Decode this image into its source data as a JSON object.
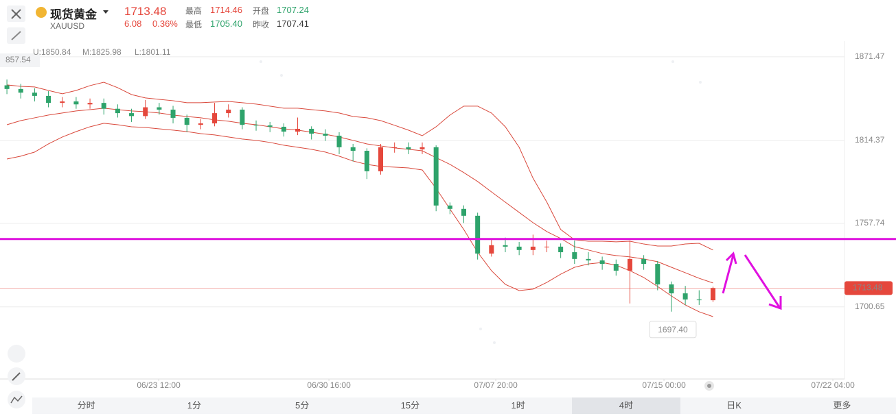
{
  "header": {
    "name": "现货黄金",
    "symbol": "XAUUSD",
    "price": "1713.48",
    "change": "6.08",
    "change_pct": "0.36%",
    "stats": [
      [
        "最高",
        "1714.46"
      ],
      [
        "开盘",
        "1707.24"
      ],
      [
        "最低",
        "1705.40"
      ],
      [
        "昨收",
        "1707.41"
      ]
    ]
  },
  "tabs": [
    "分时",
    "1分",
    "5分",
    "15分",
    "1时",
    "4时",
    "日K",
    "更多"
  ],
  "active_tab": 5,
  "chart_data": {
    "type": "candlestick",
    "indicator_labels": [
      "U:1850.84",
      "M:1825.98",
      "L:1801.11"
    ],
    "cursor_label": "857.54",
    "x": [
      0,
      1,
      2,
      3,
      4,
      5,
      6,
      7,
      8,
      9,
      10,
      11,
      12,
      13,
      14,
      15,
      16,
      17,
      18,
      19,
      20,
      21,
      22,
      23,
      24,
      25,
      26,
      27,
      28,
      29,
      30,
      31,
      32,
      33,
      34,
      35,
      36,
      37,
      38,
      39,
      40,
      41,
      42,
      43,
      44,
      45,
      46,
      47,
      48,
      49,
      50,
      51
    ],
    "open": [
      1852.0,
      1849.5,
      1847.0,
      1844.8,
      1840.0,
      1841.0,
      1839.0,
      1840.0,
      1836.0,
      1833.0,
      1831.0,
      1837.0,
      1835.4,
      1829.8,
      1825.0,
      1826.0,
      1833.0,
      1835.4,
      1825.0,
      1824.6,
      1823.7,
      1820.4,
      1822.3,
      1819.0,
      1817.6,
      1809.7,
      1807.3,
      1793.3,
      1809.7,
      1809.7,
      1808.3,
      1809.7,
      1769.9,
      1767.6,
      1762.9,
      1737.1,
      1742.8,
      1741.8,
      1739.5,
      1741.8,
      1741.8,
      1738.0,
      1733.4,
      1732.4,
      1730.0,
      1725.4,
      1733.4,
      1730.0,
      1716.0,
      1709.9,
      1705.7,
      1705.2
    ],
    "high": [
      1856,
      1853,
      1850,
      1848,
      1844,
      1844,
      1843,
      1843,
      1839,
      1836,
      1842,
      1840,
      1838,
      1832,
      1829,
      1840,
      1839,
      1837,
      1828,
      1827,
      1826,
      1830,
      1824,
      1822,
      1820,
      1812,
      1809,
      1812,
      1813,
      1813,
      1813,
      1811,
      1772,
      1770,
      1765,
      1747,
      1748,
      1745,
      1750,
      1746,
      1744,
      1746,
      1738,
      1735,
      1733,
      1746,
      1736,
      1732,
      1718,
      1715,
      1712,
      1714.46
    ],
    "low": [
      1846,
      1843,
      1841,
      1837,
      1837,
      1836,
      1836,
      1832,
      1830,
      1827,
      1829,
      1832,
      1826,
      1820,
      1822,
      1824,
      1830,
      1822,
      1821,
      1820,
      1817,
      1818,
      1815,
      1814,
      1805,
      1800,
      1788,
      1791,
      1806,
      1805,
      1805,
      1766,
      1764,
      1758,
      1733,
      1735,
      1738,
      1736,
      1736,
      1738,
      1734,
      1730,
      1729,
      1726,
      1722,
      1703,
      1726,
      1712,
      1697.4,
      1702,
      1702,
      1704
    ],
    "close": [
      1849.5,
      1847.0,
      1844.8,
      1840.0,
      1841.0,
      1839.0,
      1840.0,
      1836.0,
      1833.0,
      1831.0,
      1837.0,
      1835.4,
      1829.8,
      1825.0,
      1826.0,
      1833.0,
      1835.4,
      1825.0,
      1824.6,
      1823.7,
      1820.4,
      1822.3,
      1819.0,
      1817.6,
      1809.7,
      1807.3,
      1793.3,
      1809.7,
      1809.7,
      1808.3,
      1809.7,
      1769.9,
      1767.6,
      1762.9,
      1737.1,
      1742.8,
      1741.8,
      1739.5,
      1741.8,
      1741.8,
      1738.0,
      1733.4,
      1732.4,
      1730.0,
      1725.4,
      1733.4,
      1730.0,
      1716.0,
      1709.9,
      1705.7,
      1705.2,
      1713.48
    ],
    "up_color": "#e5473c",
    "down_color": "#2ea36b",
    "bands": [
      {
        "color": "#d9483b",
        "values": [
          1852.3,
          1851.3,
          1850.9,
          1848.5,
          1846.2,
          1848.5,
          1851.8,
          1854.1,
          1850.4,
          1845.7,
          1843.4,
          1842.4,
          1841.5,
          1840.1,
          1840.1,
          1840.6,
          1841.0,
          1840.1,
          1839.2,
          1837.8,
          1836.4,
          1836.4,
          1835.4,
          1834.5,
          1833.1,
          1830.7,
          1829.8,
          1827.9,
          1824.7,
          1821.4,
          1817.6,
          1823.7,
          1831.7,
          1837.8,
          1837.8,
          1833.1,
          1823.7,
          1809.7,
          1788.6,
          1772.2,
          1753.5,
          1746.5,
          1745.5,
          1745.5,
          1745.1,
          1745.5,
          1743.6,
          1742.2,
          1742.2,
          1743.6,
          1744.1,
          1739.5
        ]
      },
      {
        "color": "#d9483b",
        "values": [
          1825.1,
          1827.9,
          1829.8,
          1831.7,
          1833.1,
          1834.5,
          1835.4,
          1836.4,
          1835.4,
          1834.5,
          1834.0,
          1833.1,
          1831.7,
          1830.7,
          1829.8,
          1828.4,
          1827.5,
          1826.1,
          1825.1,
          1823.7,
          1822.3,
          1821.4,
          1820.0,
          1818.6,
          1816.7,
          1814.4,
          1812.0,
          1810.6,
          1809.2,
          1808.3,
          1807.3,
          1802.6,
          1798.0,
          1792.4,
          1786.3,
          1779.2,
          1772.2,
          1765.2,
          1758.2,
          1752.1,
          1747.4,
          1741.8,
          1739.5,
          1737.1,
          1735.7,
          1734.8,
          1733.4,
          1731.5,
          1727.7,
          1724.0,
          1720.2,
          1717.0
        ]
      },
      {
        "color": "#d9483b",
        "values": [
          1801.7,
          1803.6,
          1806.4,
          1812.0,
          1816.7,
          1820.4,
          1823.7,
          1826.1,
          1825.1,
          1823.7,
          1823.2,
          1822.3,
          1821.4,
          1820.4,
          1819.0,
          1818.1,
          1816.7,
          1815.3,
          1814.4,
          1813.0,
          1811.1,
          1809.7,
          1808.3,
          1806.4,
          1803.6,
          1800.3,
          1798.0,
          1796.6,
          1796.1,
          1795.6,
          1794.2,
          1781.6,
          1767.5,
          1753.5,
          1738.0,
          1725.4,
          1716.0,
          1711.8,
          1712.8,
          1717.4,
          1723.0,
          1727.7,
          1730.0,
          1731.0,
          1729.1,
          1725.4,
          1720.7,
          1714.6,
          1708.1,
          1702.0,
          1697.3,
          1694.0
        ]
      }
    ],
    "reference_line": {
      "value": 1747.0,
      "color": "#dd11dd"
    },
    "last_price": {
      "value": 1713.48,
      "label": "1713.48",
      "color": "#e5473c"
    },
    "low_label": "1697.40",
    "xlim": [
      -0.5,
      60.5
    ],
    "xticks": [
      {
        "value": 10.96,
        "label": "06/23 12:00"
      },
      {
        "value": 23.26,
        "label": "06/30 16:00"
      },
      {
        "value": 35.31,
        "label": "07/07 20:00"
      },
      {
        "value": 47.46,
        "label": "07/15 00:00"
      },
      {
        "value": 59.66,
        "label": "07/22 04:00"
      }
    ],
    "ylim": [
      1651.4,
      1882.2
    ],
    "yticks": [
      1871.47,
      1814.37,
      1757.74,
      1700.65
    ],
    "grid": true
  }
}
